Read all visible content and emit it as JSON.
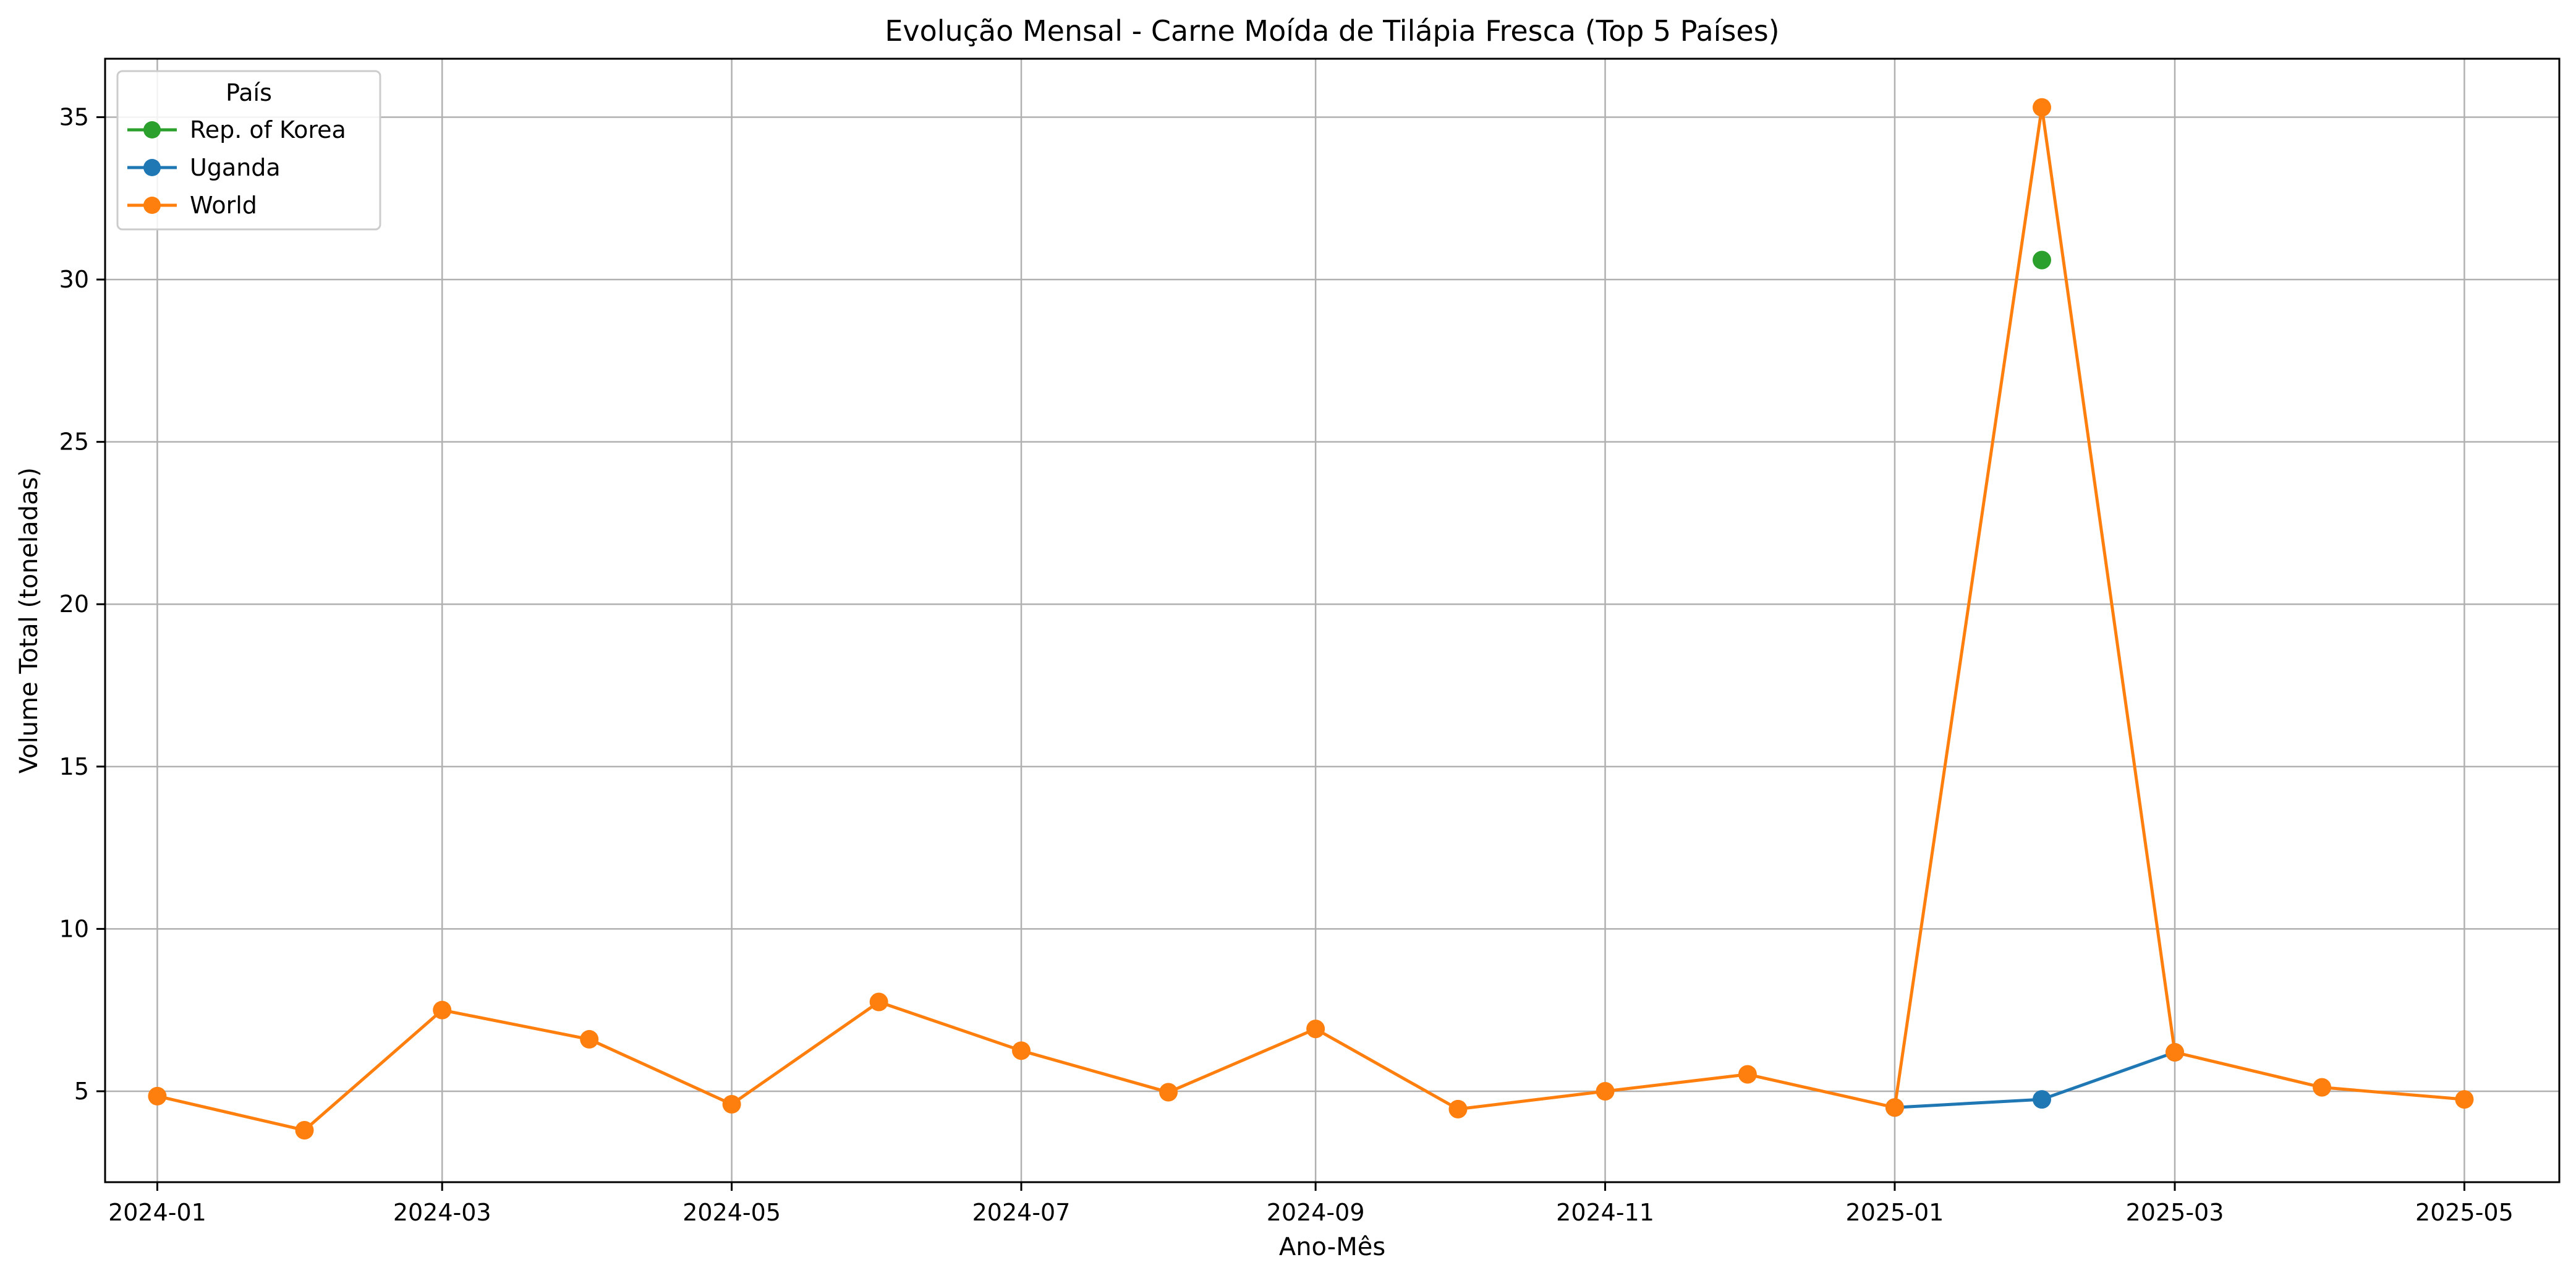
{
  "chart_data": {
    "type": "line",
    "title": "Evolução Mensal - Carne Moída de Tilápia Fresca (Top 5 Países)",
    "xlabel": "Ano-Mês",
    "ylabel": "Volume Total (toneladas)",
    "x_ticks": [
      "2024-01",
      "2024-03",
      "2024-05",
      "2024-07",
      "2024-09",
      "2024-11",
      "2025-01",
      "2025-03",
      "2025-05"
    ],
    "y_ticks": [
      5,
      10,
      15,
      20,
      25,
      30,
      35
    ],
    "ylim": [
      2.2,
      36.8
    ],
    "xlim": [
      "2023-12-21",
      "2025-05-21"
    ],
    "grid": true,
    "legend": {
      "title": "País",
      "position": "top-left"
    },
    "series": [
      {
        "name": "Rep. of Korea",
        "color": "#2ca02c",
        "points": [
          {
            "x": "2025-02",
            "y": 30.6
          }
        ]
      },
      {
        "name": "Uganda",
        "color": "#1f77b4",
        "points": [
          {
            "x": "2025-01",
            "y": 4.5
          },
          {
            "x": "2025-02",
            "y": 4.75
          },
          {
            "x": "2025-03",
            "y": 6.2
          }
        ]
      },
      {
        "name": "World",
        "color": "#ff7f0e",
        "points": [
          {
            "x": "2024-01",
            "y": 4.85
          },
          {
            "x": "2024-02",
            "y": 3.8
          },
          {
            "x": "2024-03",
            "y": 7.5
          },
          {
            "x": "2024-04",
            "y": 6.6
          },
          {
            "x": "2024-05",
            "y": 4.6
          },
          {
            "x": "2024-06",
            "y": 7.75
          },
          {
            "x": "2024-07",
            "y": 6.25
          },
          {
            "x": "2024-08",
            "y": 4.97
          },
          {
            "x": "2024-09",
            "y": 6.92
          },
          {
            "x": "2024-10",
            "y": 4.45
          },
          {
            "x": "2024-11",
            "y": 5.0
          },
          {
            "x": "2024-12",
            "y": 5.52
          },
          {
            "x": "2025-01",
            "y": 4.5
          },
          {
            "x": "2025-02",
            "y": 35.3
          },
          {
            "x": "2025-03",
            "y": 6.2
          },
          {
            "x": "2025-04",
            "y": 5.12
          },
          {
            "x": "2025-05",
            "y": 4.75
          }
        ]
      }
    ]
  }
}
